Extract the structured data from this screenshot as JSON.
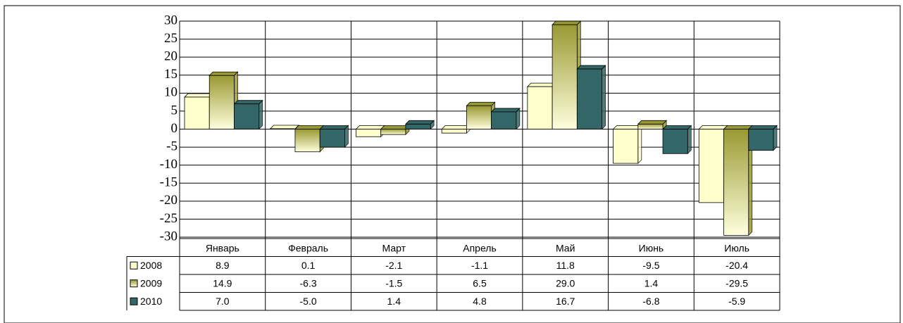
{
  "chart_data": {
    "type": "bar",
    "categories": [
      "Январь",
      "Февраль",
      "Март",
      "Апрель",
      "Май",
      "Июнь",
      "Июль"
    ],
    "series": [
      {
        "name": "2008",
        "color": "#ffffcc",
        "values": [
          8.9,
          0.1,
          -2.1,
          -1.1,
          11.8,
          -9.5,
          -20.4
        ],
        "value_labels": [
          "8.9",
          "0.1",
          "-2.1",
          "-1.1",
          "11.8",
          "-9.5",
          "-20.4"
        ]
      },
      {
        "name": "2009",
        "color": "#999933",
        "values": [
          14.9,
          -6.3,
          -1.5,
          6.5,
          29.0,
          1.4,
          -29.5
        ],
        "value_labels": [
          "14.9",
          "-6.3",
          "-1.5",
          "6.5",
          "29.0",
          "1.4",
          "-29.5"
        ]
      },
      {
        "name": "2010",
        "color": "#336666",
        "values": [
          7.0,
          -5.0,
          1.4,
          4.8,
          16.7,
          -6.8,
          -5.9
        ],
        "value_labels": [
          "7.0",
          "-5.0",
          "1.4",
          "4.8",
          "16.7",
          "-6.8",
          "-5.9"
        ]
      }
    ],
    "ylim": [
      -30,
      30
    ],
    "yticks": [
      -30,
      -25,
      -20,
      -15,
      -10,
      -5,
      0,
      5,
      10,
      15,
      20,
      25,
      30
    ],
    "grid": true,
    "legend": "table"
  }
}
